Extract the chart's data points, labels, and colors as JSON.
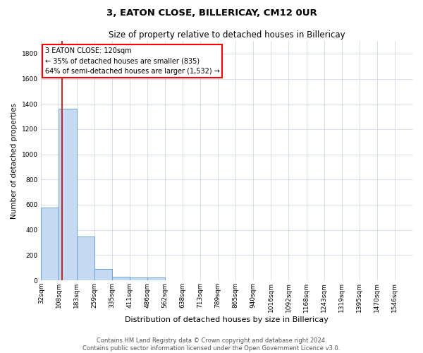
{
  "title": "3, EATON CLOSE, BILLERICAY, CM12 0UR",
  "subtitle": "Size of property relative to detached houses in Billericay",
  "xlabel": "Distribution of detached houses by size in Billericay",
  "ylabel": "Number of detached properties",
  "bar_labels": [
    "32sqm",
    "108sqm",
    "183sqm",
    "259sqm",
    "335sqm",
    "411sqm",
    "486sqm",
    "562sqm",
    "638sqm",
    "713sqm",
    "789sqm",
    "865sqm",
    "940sqm",
    "1016sqm",
    "1092sqm",
    "1168sqm",
    "1243sqm",
    "1319sqm",
    "1395sqm",
    "1470sqm",
    "1546sqm"
  ],
  "bar_values": [
    580,
    1360,
    350,
    90,
    30,
    20,
    25,
    0,
    0,
    0,
    0,
    0,
    0,
    0,
    0,
    0,
    0,
    0,
    0,
    0,
    0
  ],
  "bar_color": "#c5d9f1",
  "bar_edge_color": "#5b9bd5",
  "ylim": [
    0,
    1900
  ],
  "yticks": [
    0,
    200,
    400,
    600,
    800,
    1000,
    1200,
    1400,
    1600,
    1800
  ],
  "annotation_text_line1": "3 EATON CLOSE: 120sqm",
  "annotation_text_line2": "← 35% of detached houses are smaller (835)",
  "annotation_text_line3": "64% of semi-detached houses are larger (1,532) →",
  "annotation_box_color": "white",
  "annotation_edge_color": "red",
  "red_line_color": "#cc0000",
  "grid_color": "#d0d8e4",
  "background_color": "white",
  "footer_line1": "Contains HM Land Registry data © Crown copyright and database right 2024.",
  "footer_line2": "Contains public sector information licensed under the Open Government Licence v3.0.",
  "title_fontsize": 9.5,
  "subtitle_fontsize": 8.5,
  "xlabel_fontsize": 8,
  "ylabel_fontsize": 7.5,
  "tick_fontsize": 6.5,
  "annotation_fontsize": 7,
  "footer_fontsize": 6
}
